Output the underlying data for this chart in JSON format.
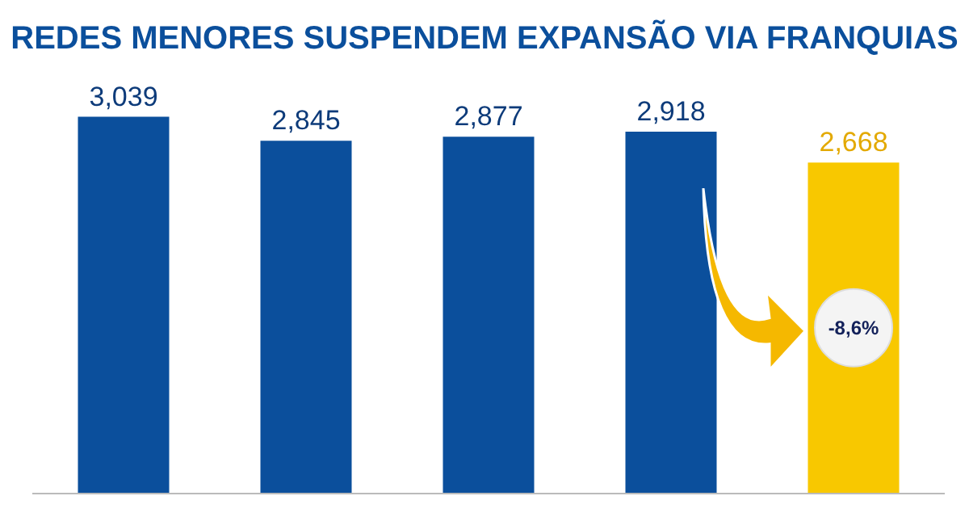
{
  "chart_data": {
    "type": "bar",
    "title": "REDES MENORES SUSPENDEM EXPANSÃO VIA FRANQUIAS",
    "categories": [
      null,
      null,
      null,
      null,
      null
    ],
    "values": [
      3039,
      2845,
      2877,
      2918,
      2668
    ],
    "value_labels": [
      "3,039",
      "2,845",
      "2,877",
      "2,918",
      "2,668"
    ],
    "colors": [
      "#0b4f9c",
      "#0b4f9c",
      "#0b4f9c",
      "#0b4f9c",
      "#f8c800"
    ],
    "tick_labels": false,
    "grid": false,
    "annotations": [
      "-8,6%"
    ]
  }
}
